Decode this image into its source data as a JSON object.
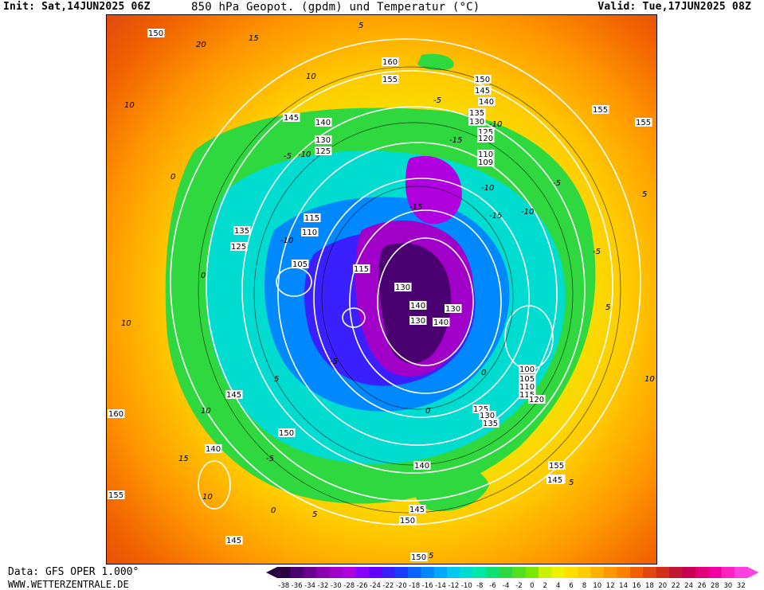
{
  "header": {
    "init": "Init: Sat,14JUN2025 06Z",
    "title": "850 hPa Geopot. (gpdm) und Temperatur (°C)",
    "valid": "Valid: Tue,17JUN2025 08Z"
  },
  "footer": {
    "source": "Data: GFS OPER 1.000°",
    "website": "WWW.WETTERZENTRALE.DE"
  },
  "colorscale": {
    "labels": [
      "-38",
      "-36",
      "-34",
      "-32",
      "-30",
      "-28",
      "-26",
      "-24",
      "-22",
      "-20",
      "-18",
      "-16",
      "-14",
      "-12",
      "-10",
      "-8",
      "-6",
      "-4",
      "-2",
      "0",
      "2",
      "4",
      "6",
      "8",
      "10",
      "12",
      "14",
      "16",
      "18",
      "20",
      "22",
      "24",
      "26",
      "28",
      "30",
      "32"
    ],
    "colors": [
      "#2a0040",
      "#4a0070",
      "#6a0090",
      "#8a00b0",
      "#a000c8",
      "#b000e0",
      "#8800ff",
      "#6000ff",
      "#3a1fff",
      "#1a3cff",
      "#0a62ff",
      "#0088ff",
      "#00a8ff",
      "#00c8f0",
      "#00dcd0",
      "#00e8a8",
      "#10e070",
      "#30d840",
      "#50e020",
      "#78e800",
      "#c8f000",
      "#f0f000",
      "#ffe000",
      "#ffcc00",
      "#ffb000",
      "#ff9800",
      "#ff8000",
      "#f06000",
      "#e04810",
      "#d03018",
      "#c01830",
      "#c80050",
      "#e00078",
      "#f000a0",
      "#ff20c0",
      "#ff40e0"
    ]
  },
  "map": {
    "height_labels": [
      "150",
      "160",
      "155",
      "150",
      "145",
      "140",
      "135",
      "130",
      "125",
      "120",
      "110",
      "109",
      "145",
      "140",
      "130",
      "125",
      "155",
      "115",
      "110",
      "135",
      "125",
      "105",
      "115",
      "130",
      "140",
      "140",
      "130",
      "130",
      "100",
      "105",
      "110",
      "115",
      "120",
      "125",
      "130",
      "135",
      "145",
      "140",
      "150",
      "160",
      "155",
      "145",
      "150",
      "140",
      "145",
      "155",
      "140",
      "150",
      "145",
      "155"
    ],
    "temp_labels": [
      "15",
      "20",
      "10",
      "5",
      "10",
      "-5",
      "-10",
      "-15",
      "0",
      "-10",
      "-5",
      "-15",
      "-10",
      "-15",
      "-10",
      "-5",
      "0",
      "5",
      "10",
      "-5",
      "0",
      "5",
      "10",
      "15",
      "-5",
      "0",
      "5",
      "10",
      "5",
      "10",
      "5",
      "0",
      "-5",
      "-10",
      "5"
    ]
  }
}
